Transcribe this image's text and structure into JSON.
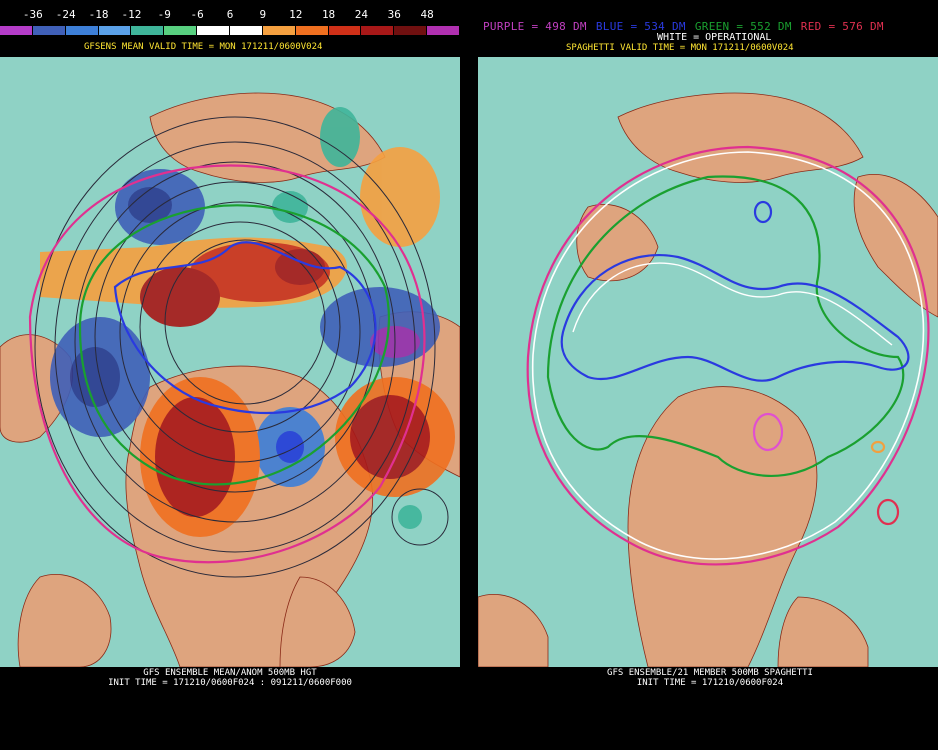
{
  "colorbar": {
    "labels": [
      "-36",
      "-24",
      "-18",
      "-12",
      "-9",
      "-6",
      "6",
      "9",
      "12",
      "18",
      "24",
      "36",
      "48"
    ],
    "colors": [
      "#b43cc8",
      "#4060b8",
      "#3d7fd8",
      "#5aa0e8",
      "#3fb59a",
      "#58d080",
      "#ffffff",
      "#ffffff",
      "#f5a040",
      "#f07020",
      "#d03018",
      "#a81818",
      "#701010",
      "#b030b0"
    ]
  },
  "left_panel": {
    "title": "GFSENS MEAN VALID TIME = MON 171211/0600V024",
    "footer_line1": "GFS ENSEMBLE MEAN/ANOM 500MB HGT",
    "footer_line2": "INIT TIME = 171210/0600F024 : 091211/0600F000"
  },
  "right_panel": {
    "legend": [
      {
        "text": "PURPLE = 498 DM",
        "color": "#c040c0"
      },
      {
        "text": "BLUE = 534 DM",
        "color": "#2a3ae0"
      },
      {
        "text": "GREEN = 552 DM",
        "color": "#1aa030"
      },
      {
        "text": "RED = 576 DM",
        "color": "#e03050"
      }
    ],
    "title": "SPAGHETTI VALID TIME = MON 171211/0600V024",
    "subtitle": "WHITE = OPERATIONAL",
    "footer_line1": "GFS ENSEMBLE/21 MEMBER 500MB SPAGHETTI",
    "footer_line2": "INIT TIME = 171210/0600F024"
  },
  "colors": {
    "ocean": "#8fd2c5",
    "land": "#dea47e",
    "coast": "#8a2a18",
    "background": "#000000",
    "title_yellow": "#ffe633"
  }
}
